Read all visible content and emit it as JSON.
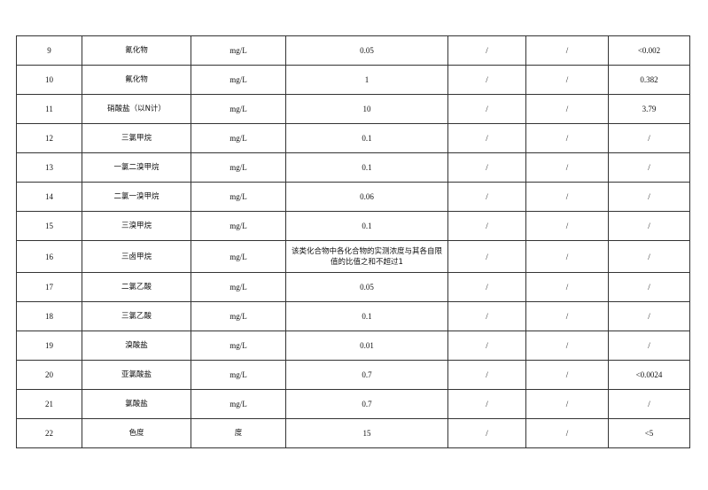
{
  "table": {
    "rows": [
      [
        "9",
        "氰化物",
        "mg/L",
        "0.05",
        "/",
        "/",
        "<0.002"
      ],
      [
        "10",
        "氟化物",
        "mg/L",
        "1",
        "/",
        "/",
        "0.382"
      ],
      [
        "11",
        "硝酸盐（以N计）",
        "mg/L",
        "10",
        "/",
        "/",
        "3.79"
      ],
      [
        "12",
        "三氯甲烷",
        "mg/L",
        "0.1",
        "/",
        "/",
        "/"
      ],
      [
        "13",
        "一氯二溴甲烷",
        "mg/L",
        "0.1",
        "/",
        "/",
        "/"
      ],
      [
        "14",
        "二氯一溴甲烷",
        "mg/L",
        "0.06",
        "/",
        "/",
        "/"
      ],
      [
        "15",
        "三溴甲烷",
        "mg/L",
        "0.1",
        "/",
        "/",
        "/"
      ],
      [
        "16",
        "三卤甲烷",
        "mg/L",
        "该类化合物中各化合物的实测浓度与其各自限值的比值之和不超过1",
        "/",
        "/",
        "/"
      ],
      [
        "17",
        "二氯乙酸",
        "mg/L",
        "0.05",
        "/",
        "/",
        "/"
      ],
      [
        "18",
        "三氯乙酸",
        "mg/L",
        "0.1",
        "/",
        "/",
        "/"
      ],
      [
        "19",
        "溴酸盐",
        "mg/L",
        "0.01",
        "/",
        "/",
        "/"
      ],
      [
        "20",
        "亚氯酸盐",
        "mg/L",
        "0.7",
        "/",
        "/",
        "<0.0024"
      ],
      [
        "21",
        "氯酸盐",
        "mg/L",
        "0.7",
        "/",
        "/",
        "/"
      ],
      [
        "22",
        "色度",
        "度",
        "15",
        "/",
        "/",
        "<5"
      ]
    ]
  }
}
